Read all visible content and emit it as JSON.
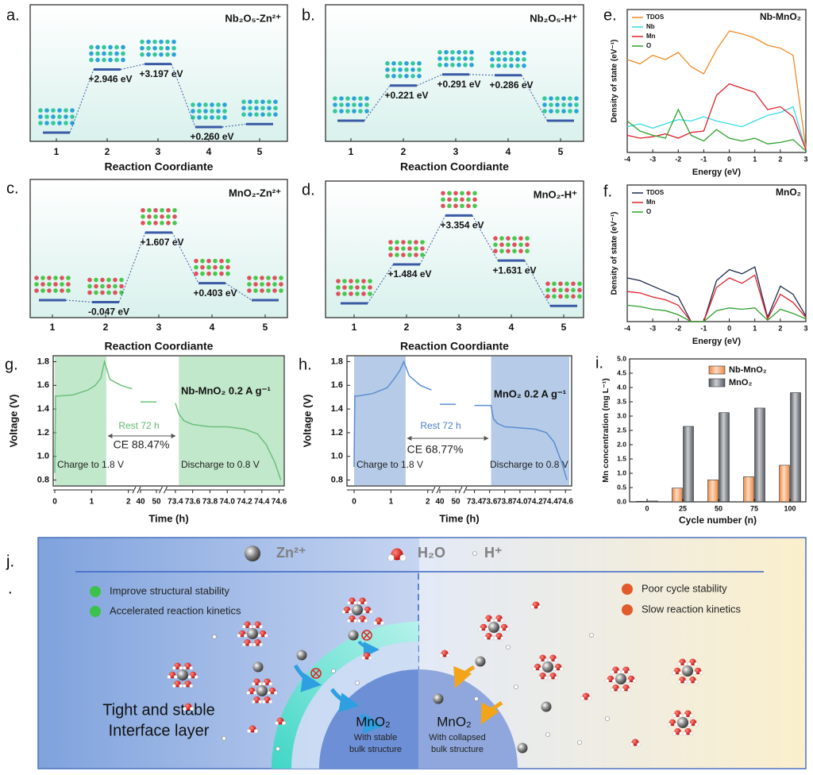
{
  "chart_data": [
    {
      "panel": "a.",
      "type": "energy",
      "title": "Nb₂O₅-Zn²⁺",
      "xlabel": "Reaction Coordiante",
      "categories": [
        "1",
        "2",
        "3",
        "4",
        "5"
      ],
      "values": [
        0,
        2.946,
        3.197,
        0.26,
        0.4
      ],
      "value_labels": [
        null,
        "+2.946 eV",
        "+3.197 eV",
        "+0.260 eV",
        null
      ],
      "color": "#3a5aa6"
    },
    {
      "panel": "b.",
      "type": "energy",
      "title": "Nb₂O₅-H⁺",
      "xlabel": "Reaction Coordiante",
      "categories": [
        "1",
        "2",
        "3",
        "4",
        "5"
      ],
      "values": [
        0,
        0.221,
        0.291,
        0.286,
        0
      ],
      "value_labels": [
        null,
        "+0.221 eV",
        "+0.291 eV",
        "+0.286 eV",
        null
      ],
      "color": "#3a5aa6"
    },
    {
      "panel": "c.",
      "type": "energy",
      "title": "MnO₂-Zn²⁺",
      "xlabel": "Reaction Coordiante",
      "categories": [
        "1",
        "2",
        "3",
        "4",
        "5"
      ],
      "values": [
        0,
        -0.047,
        1.607,
        0.403,
        0
      ],
      "value_labels": [
        null,
        "-0.047 eV",
        "+1.607 eV",
        "+0.403 eV",
        null
      ],
      "color": "#3a5aa6"
    },
    {
      "panel": "d.",
      "type": "energy",
      "title": "MnO₂-H⁺",
      "xlabel": "Reaction Coordiante",
      "categories": [
        "1",
        "2",
        "3",
        "4",
        "5"
      ],
      "values": [
        0,
        1.484,
        3.354,
        1.631,
        -0.1
      ],
      "value_labels": [
        null,
        "+1.484 eV",
        "+3.354 eV",
        "+1.631 eV",
        null
      ],
      "color": "#3a5aa6"
    },
    {
      "panel": "e.",
      "type": "line",
      "title": "Nb-MnO₂",
      "xlabel": "Energy (eV)",
      "ylabel": "Density of state (eV⁻¹)",
      "legend": "upper left",
      "x": [
        -4,
        -3.5,
        -3,
        -2.5,
        -2,
        -1.5,
        -1,
        -0.5,
        0,
        0.5,
        1,
        1.5,
        2,
        2.5,
        3
      ],
      "xlim": [
        -4,
        3
      ],
      "xticks": [
        -4,
        -3,
        -2,
        -1,
        0,
        1,
        2,
        3
      ],
      "ylim": [
        0,
        10
      ],
      "series": [
        {
          "name": "TDOS",
          "color": "#f08a24",
          "values": [
            6.5,
            6.2,
            6.8,
            6.5,
            7.0,
            6.0,
            5.5,
            7.2,
            8.5,
            8.3,
            8.0,
            7.5,
            7.3,
            6.8,
            0.3
          ]
        },
        {
          "name": "Nb",
          "color": "#35dbe6",
          "values": [
            1.8,
            2.0,
            1.7,
            2.0,
            2.3,
            2.2,
            2.5,
            2.2,
            2.0,
            1.8,
            2.2,
            2.6,
            2.8,
            3.2,
            0.2
          ]
        },
        {
          "name": "Mn",
          "color": "#e0202a",
          "values": [
            1.2,
            1.0,
            1.1,
            1.3,
            1.0,
            1.4,
            1.5,
            4.0,
            4.8,
            4.5,
            4.2,
            3.0,
            3.2,
            2.5,
            0.2
          ]
        },
        {
          "name": "O",
          "color": "#2ca02c",
          "values": [
            2.2,
            1.5,
            1.2,
            1.0,
            3.0,
            1.2,
            0.8,
            1.6,
            1.0,
            0.8,
            1.0,
            0.6,
            0.7,
            0.9,
            0.1
          ]
        }
      ]
    },
    {
      "panel": "f.",
      "type": "line",
      "title": "MnO₂",
      "xlabel": "Energy (eV)",
      "ylabel": "Density of state (eV⁻¹)",
      "legend": "upper left",
      "x": [
        -4,
        -3.5,
        -3,
        -2.5,
        -2,
        -1.5,
        -1,
        -0.5,
        0,
        0.5,
        1,
        1.5,
        2,
        2.5,
        3
      ],
      "xlim": [
        -4,
        3
      ],
      "xticks": [
        -4,
        -3,
        -2,
        -1,
        0,
        1,
        2,
        3
      ],
      "ylim": [
        0,
        10
      ],
      "series": [
        {
          "name": "TDOS",
          "color": "#1b2a4a",
          "values": [
            3.2,
            3.0,
            2.6,
            2.2,
            1.8,
            0,
            0,
            3.0,
            3.8,
            3.5,
            4.0,
            0.3,
            2.6,
            2.0,
            0.4
          ]
        },
        {
          "name": "Mn",
          "color": "#e0202a",
          "values": [
            2.2,
            2.1,
            1.8,
            1.6,
            1.2,
            0,
            0,
            2.5,
            3.2,
            2.8,
            3.4,
            0.2,
            2.0,
            1.4,
            0.3
          ]
        },
        {
          "name": "O",
          "color": "#2ca02c",
          "values": [
            1.2,
            1.1,
            0.9,
            0.8,
            0.5,
            0,
            0,
            0.8,
            1.0,
            0.9,
            1.0,
            0.1,
            0.9,
            0.6,
            0.2
          ]
        }
      ]
    },
    {
      "panel": "g.",
      "type": "voltage",
      "title": "Nb-MnO₂ 0.2 A g⁻¹",
      "xlabel": "Time (h)",
      "ylabel": "Voltage (V)",
      "xlim": [
        [
          0,
          2.2
        ],
        [
          38,
          52
        ],
        [
          73.3,
          74.65
        ]
      ],
      "xticks": [
        0,
        1,
        2,
        40,
        50,
        73.4,
        73.6,
        73.8,
        {
          "value": 74,
          "label": "74.0"
        },
        74.2,
        74.4,
        74.6
      ],
      "ylim": [
        0.75,
        1.85
      ],
      "yticks": [
        0.8,
        {
          "value": 1,
          "label": "1.0"
        },
        1.2,
        1.4,
        1.6,
        1.8
      ],
      "color": "#6cc07c",
      "shade_color": "#b7e4c2",
      "shaded_ranges": [
        [
          0,
          1.4
        ],
        [
          73.44,
          74.65
        ]
      ],
      "x": [
        0,
        0.02,
        0.1,
        0.5,
        0.9,
        1.1,
        1.25,
        1.35,
        1.5,
        1.8,
        2.1,
        null,
        40,
        50,
        null,
        73.4,
        73.44,
        73.5,
        73.6,
        73.8,
        74.0,
        74.2,
        74.35,
        74.45,
        74.55,
        74.62
      ],
      "values": [
        0.86,
        1.51,
        1.51,
        1.52,
        1.56,
        1.6,
        1.66,
        1.8,
        1.65,
        1.6,
        1.57,
        null,
        1.46,
        1.46,
        null,
        1.45,
        1.36,
        1.3,
        1.27,
        1.25,
        1.25,
        1.23,
        1.19,
        1.1,
        0.95,
        0.8
      ],
      "annotations": [
        "Rest 72 h",
        "CE 88.47%",
        "Charge to 1.8 V",
        "Discharge to 0.8 V"
      ]
    },
    {
      "panel": "h.",
      "type": "voltage",
      "title": "MnO₂ 0.2 A g⁻¹",
      "xlabel": "Time (h)",
      "ylabel": "Voltage (V)",
      "xlim": [
        [
          0,
          2.2
        ],
        [
          38,
          52
        ],
        [
          73.3,
          74.65
        ]
      ],
      "xticks": [
        0,
        1,
        2,
        40,
        50,
        73.4,
        73.6,
        73.8,
        {
          "value": 74,
          "label": "74.0"
        },
        74.2,
        74.4,
        74.6
      ],
      "ylim": [
        0.75,
        1.85
      ],
      "yticks": [
        0.8,
        {
          "value": 1,
          "label": "1.0"
        },
        1.2,
        1.4,
        1.6,
        1.8
      ],
      "color": "#5b8ed1",
      "shade_color": "#a9c2e3",
      "shaded_ranges": [
        [
          0,
          1.4
        ],
        [
          73.62,
          74.65
        ]
      ],
      "x": [
        0,
        0.02,
        0.1,
        0.5,
        0.9,
        1.1,
        1.25,
        1.35,
        1.5,
        1.8,
        2.1,
        null,
        40,
        50,
        null,
        73.4,
        73.62,
        73.65,
        73.7,
        73.8,
        74.0,
        74.2,
        74.35,
        74.45,
        74.55,
        74.62
      ],
      "values": [
        0.91,
        1.51,
        1.51,
        1.53,
        1.58,
        1.66,
        1.73,
        1.8,
        1.68,
        1.6,
        1.56,
        null,
        1.44,
        1.44,
        null,
        1.43,
        1.43,
        1.32,
        1.28,
        1.25,
        1.24,
        1.23,
        1.2,
        1.12,
        0.95,
        0.8
      ],
      "annotations": [
        "Rest 72 h",
        "CE 68.77%",
        "Charge to 1.8 V",
        "Discharge to 0.8 V"
      ]
    },
    {
      "panel": "i.",
      "type": "bar",
      "xlabel": "Cycle number (n)",
      "ylabel": "Mn concentration (mg L⁻¹)",
      "legend": "upper center",
      "categories": [
        "0",
        "25",
        "50",
        "75",
        "100"
      ],
      "ylim": [
        0,
        5
      ],
      "yticks": [
        {
          "value": 0,
          "label": "0.0"
        },
        0.5,
        {
          "value": 1,
          "label": "1.0"
        },
        1.5,
        {
          "value": 2,
          "label": "2.0"
        },
        2.5,
        {
          "value": 3,
          "label": "3.0"
        },
        3.5,
        {
          "value": 4,
          "label": "4.0"
        },
        4.5,
        {
          "value": 5,
          "label": "5.0"
        }
      ],
      "series": [
        {
          "name": "Nb-MnO₂",
          "color": "#f0883e",
          "values": [
            0.02,
            0.48,
            0.77,
            0.88,
            1.28
          ]
        },
        {
          "name": "MnO₂",
          "color": "#555b63",
          "values": [
            0.03,
            2.64,
            3.12,
            3.28,
            3.82
          ]
        }
      ]
    }
  ],
  "schematic": {
    "panel": "j.",
    "mark": ".",
    "legend": [
      "Zn²⁺",
      "H₂O",
      "H⁺"
    ],
    "benefits": [
      "Improve structural stability",
      "Accelerated reaction kinetics"
    ],
    "drawbacks": [
      "Poor cycle stability",
      "Slow reaction kinetics"
    ],
    "interface_label": [
      "Tight and stable",
      "Interface layer"
    ],
    "left_core": {
      "name": "MnO₂",
      "note": [
        "With stable",
        "bulk structure"
      ]
    },
    "right_core": {
      "name": "MnO₂",
      "note": [
        "With collapsed",
        "bulk structure"
      ]
    }
  }
}
